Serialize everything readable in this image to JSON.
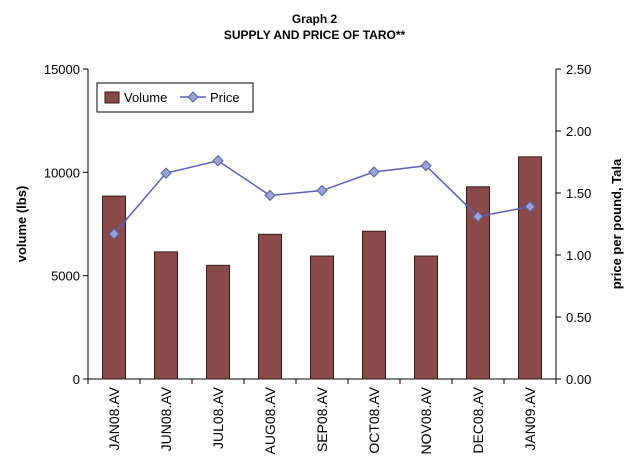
{
  "chart_data": {
    "type": "bar",
    "title": "Graph 2",
    "subtitle": "SUPPLY AND PRICE OF TARO**",
    "categories": [
      "JAN08.AV",
      "JUN08.AV",
      "JUL08.AV",
      "AUG08.AV",
      "SEP08.AV",
      "OCT08.AV",
      "NOV08.AV",
      "DEC08.AV",
      "JAN09.AV"
    ],
    "series": [
      {
        "name": "Volume",
        "type": "bar",
        "axis": "left",
        "values": [
          8850,
          6150,
          5500,
          7000,
          5950,
          7150,
          5950,
          9300,
          10750
        ]
      },
      {
        "name": "Price",
        "type": "line",
        "axis": "right",
        "values": [
          1.17,
          1.66,
          1.76,
          1.48,
          1.52,
          1.67,
          1.72,
          1.31,
          1.39
        ]
      }
    ],
    "ylabel": "volume (lbs)",
    "y2label": "price per pound, Tala",
    "ylim": [
      0,
      15000
    ],
    "y2lim": [
      0,
      2.5
    ],
    "yticks": [
      "0",
      "5000",
      "10000",
      "15000"
    ],
    "y2ticks": [
      "0.00",
      "0.50",
      "1.00",
      "1.50",
      "2.00",
      "2.50"
    ],
    "legend_position": "top-left",
    "grid": false,
    "colors": {
      "bar_fill": "#8b4a4a",
      "bar_edge": "#3a1a1a",
      "line": "#5a5fb8",
      "marker": "#9aa0d8"
    }
  }
}
